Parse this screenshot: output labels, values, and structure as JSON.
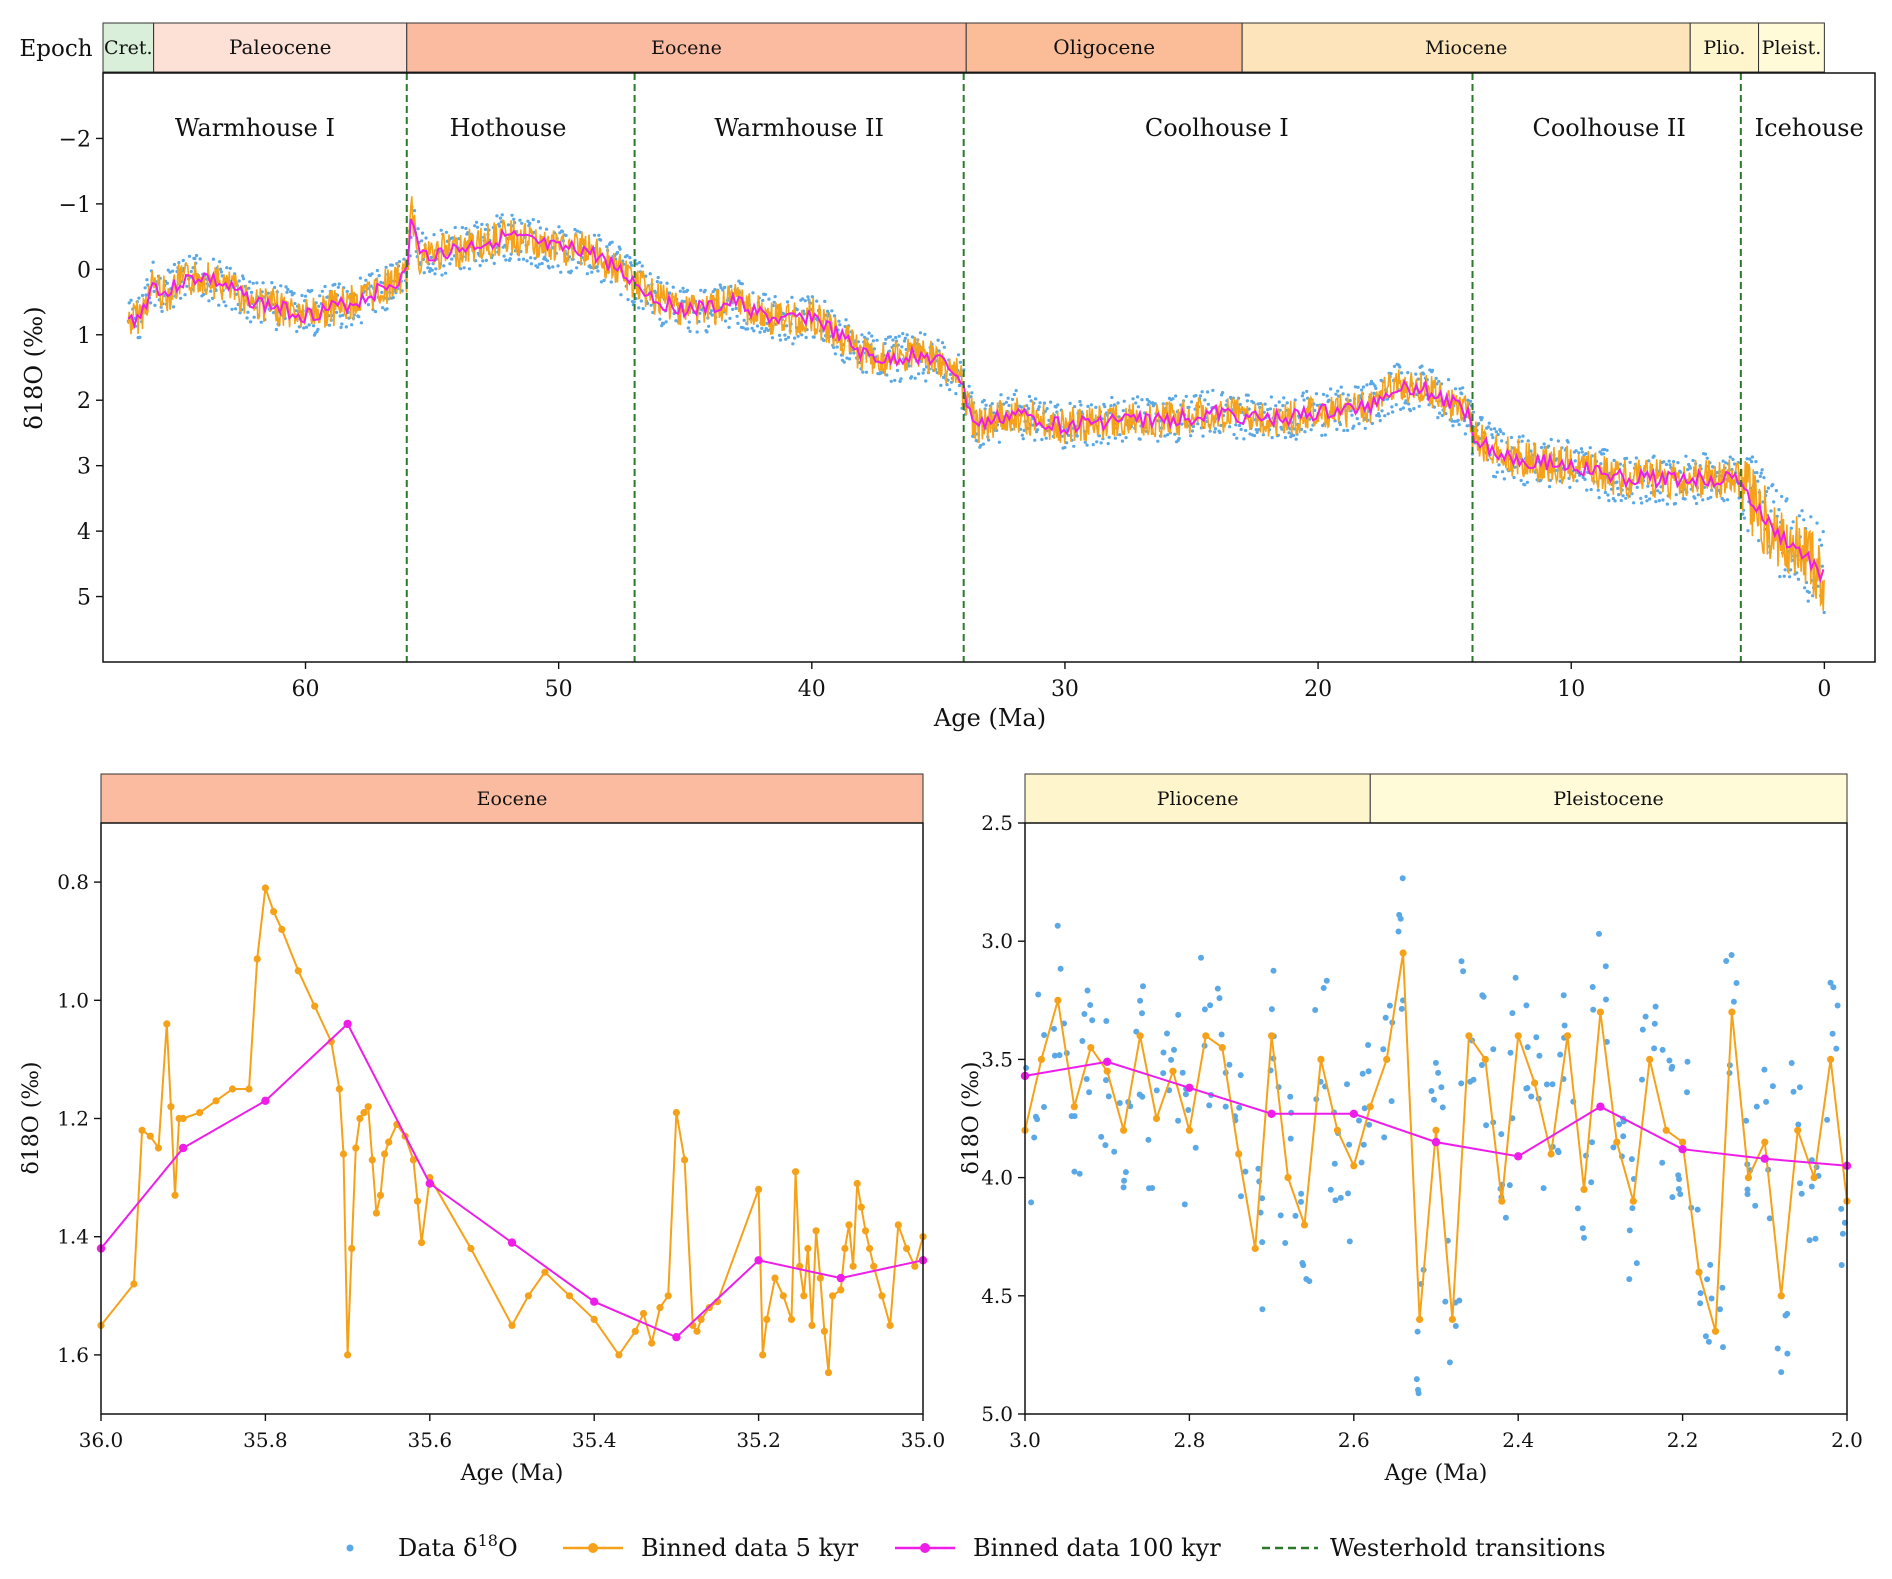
{
  "colors": {
    "data": "#5aa9e6",
    "bin5": "#f5a21a",
    "bin100": "#ee1ee8",
    "transition": "#2b7a2b"
  },
  "legend": {
    "data": "Data δ18O",
    "data_main": "Data δ",
    "data_sup": "18",
    "data_tail": "O",
    "bin5": "Binned data 5 kyr",
    "bin100": "Binned data 100 kyr",
    "transitions": "Westerhold transitions"
  },
  "chart_data": [
    {
      "id": "top",
      "type": "scatter",
      "epoch_label": "Epoch",
      "xlabel": "Age (Ma)",
      "ylabel": "δ18O (‰)",
      "xlim": [
        68,
        -2
      ],
      "ylim": [
        6,
        -3
      ],
      "y_inverted": true,
      "xticks": [
        60,
        50,
        40,
        30,
        20,
        10,
        0
      ],
      "yticks": [
        -2,
        -1,
        0,
        1,
        2,
        3,
        4,
        5
      ],
      "ytick_labels": [
        "−2",
        "−1",
        "0",
        "1",
        "2",
        "3",
        "4",
        "5"
      ],
      "epochs": [
        {
          "name": "Cret.",
          "from": 68,
          "to": 66,
          "color": "#d9efd9"
        },
        {
          "name": "Paleocene",
          "from": 66,
          "to": 56,
          "color": "#fde0d6"
        },
        {
          "name": "Eocene",
          "from": 56,
          "to": 33.9,
          "color": "#fbbba0"
        },
        {
          "name": "Oligocene",
          "from": 33.9,
          "to": 23,
          "color": "#fbbc98"
        },
        {
          "name": "Miocene",
          "from": 23,
          "to": 5.3,
          "color": "#fde4ba"
        },
        {
          "name": "Plio.",
          "from": 5.3,
          "to": 2.6,
          "color": "#fef5cc"
        },
        {
          "name": "Pleist.",
          "from": 2.6,
          "to": 0,
          "color": "#fffad8"
        }
      ],
      "climate_states": [
        {
          "name": "Warmhouse I",
          "at": 62
        },
        {
          "name": "Hothouse",
          "at": 52
        },
        {
          "name": "Warmhouse II",
          "at": 40.5
        },
        {
          "name": "Coolhouse I",
          "at": 24
        },
        {
          "name": "Coolhouse II",
          "at": 8.5
        },
        {
          "name": "Icehouse",
          "at": 0.6
        }
      ],
      "transitions": [
        56,
        47,
        34,
        13.9,
        3.3
      ],
      "trend_100kyr": {
        "x": [
          67,
          66.5,
          66,
          65.5,
          65,
          64,
          63,
          62,
          61,
          60,
          59,
          58,
          57,
          56.5,
          56,
          55.8,
          55.5,
          54,
          53,
          52,
          51,
          50,
          49,
          48,
          47,
          46,
          45,
          44,
          43,
          42,
          41,
          40,
          39,
          38,
          37,
          36,
          35,
          34.2,
          33.9,
          33.5,
          32,
          30,
          28,
          26,
          24,
          22,
          20,
          18,
          17,
          16,
          15,
          14,
          13.9,
          13,
          12,
          10,
          8,
          6,
          4,
          3.3,
          3,
          2,
          1,
          0
        ],
        "y": [
          0.8,
          0.7,
          0.2,
          0.4,
          0.2,
          0.1,
          0.3,
          0.5,
          0.6,
          0.7,
          0.6,
          0.5,
          0.3,
          0.2,
          0.1,
          -0.9,
          -0.2,
          -0.3,
          -0.4,
          -0.5,
          -0.4,
          -0.3,
          -0.3,
          -0.1,
          0.2,
          0.5,
          0.6,
          0.6,
          0.5,
          0.7,
          0.8,
          0.7,
          1.0,
          1.3,
          1.4,
          1.3,
          1.4,
          1.6,
          2.0,
          2.4,
          2.2,
          2.4,
          2.3,
          2.3,
          2.2,
          2.3,
          2.2,
          2.1,
          1.8,
          1.8,
          2.0,
          2.2,
          2.5,
          2.8,
          2.9,
          3.0,
          3.2,
          3.2,
          3.2,
          3.2,
          3.5,
          4.0,
          4.3,
          4.7
        ]
      }
    },
    {
      "id": "bottom-left",
      "type": "line",
      "epoch_label": "Eocene",
      "epoch_color": "#fbbba0",
      "xlabel": "Age (Ma)",
      "ylabel": "δ18O (‰)",
      "xlim": [
        36.0,
        35.0
      ],
      "ylim": [
        1.7,
        0.7
      ],
      "y_inverted": true,
      "xticks": [
        36.0,
        35.8,
        35.6,
        35.4,
        35.2,
        35.0
      ],
      "xtick_labels": [
        "36.0",
        "35.8",
        "35.6",
        "35.4",
        "35.2",
        "35.0"
      ],
      "yticks": [
        0.8,
        1.0,
        1.2,
        1.4,
        1.6
      ],
      "ytick_labels": [
        "0.8",
        "1.0",
        "1.2",
        "1.4",
        "1.6"
      ],
      "series": [
        {
          "name": "Binned data 5 kyr",
          "x": [
            36.0,
            35.96,
            35.95,
            35.94,
            35.93,
            35.92,
            35.915,
            35.91,
            35.905,
            35.9,
            35.88,
            35.86,
            35.84,
            35.82,
            35.81,
            35.8,
            35.79,
            35.78,
            35.76,
            35.74,
            35.72,
            35.71,
            35.705,
            35.7,
            35.695,
            35.69,
            35.685,
            35.68,
            35.675,
            35.67,
            35.665,
            35.66,
            35.655,
            35.65,
            35.64,
            35.63,
            35.62,
            35.615,
            35.61,
            35.6,
            35.55,
            35.5,
            35.48,
            35.46,
            35.43,
            35.4,
            35.37,
            35.35,
            35.34,
            35.33,
            35.32,
            35.31,
            35.3,
            35.29,
            35.28,
            35.275,
            35.27,
            35.26,
            35.25,
            35.2,
            35.195,
            35.19,
            35.18,
            35.17,
            35.16,
            35.155,
            35.15,
            35.145,
            35.14,
            35.135,
            35.13,
            35.125,
            35.12,
            35.115,
            35.11,
            35.1,
            35.095,
            35.09,
            35.085,
            35.08,
            35.075,
            35.07,
            35.065,
            35.06,
            35.05,
            35.04,
            35.03,
            35.02,
            35.01,
            35.0
          ],
          "y": [
            1.55,
            1.48,
            1.22,
            1.23,
            1.25,
            1.04,
            1.18,
            1.33,
            1.2,
            1.2,
            1.19,
            1.17,
            1.15,
            1.15,
            0.93,
            0.81,
            0.85,
            0.88,
            0.95,
            1.01,
            1.07,
            1.15,
            1.26,
            1.6,
            1.42,
            1.25,
            1.2,
            1.19,
            1.18,
            1.27,
            1.36,
            1.33,
            1.26,
            1.24,
            1.21,
            1.23,
            1.27,
            1.34,
            1.41,
            1.3,
            1.42,
            1.55,
            1.5,
            1.46,
            1.5,
            1.54,
            1.6,
            1.56,
            1.53,
            1.58,
            1.52,
            1.5,
            1.19,
            1.27,
            1.55,
            1.56,
            1.54,
            1.52,
            1.51,
            1.32,
            1.6,
            1.54,
            1.47,
            1.5,
            1.54,
            1.29,
            1.45,
            1.5,
            1.42,
            1.55,
            1.39,
            1.47,
            1.56,
            1.63,
            1.5,
            1.49,
            1.42,
            1.38,
            1.45,
            1.31,
            1.35,
            1.39,
            1.42,
            1.45,
            1.5,
            1.55,
            1.38,
            1.42,
            1.45,
            1.4
          ]
        },
        {
          "name": "Binned data 100 kyr",
          "x": [
            36.0,
            35.9,
            35.8,
            35.7,
            35.6,
            35.5,
            35.4,
            35.3,
            35.2,
            35.1,
            35.0
          ],
          "y": [
            1.42,
            1.25,
            1.17,
            1.04,
            1.31,
            1.41,
            1.51,
            1.57,
            1.44,
            1.47,
            1.44
          ]
        }
      ]
    },
    {
      "id": "bottom-right",
      "type": "line",
      "epoch_labels": [
        {
          "name": "Pliocene",
          "from": 3.0,
          "to": 2.58,
          "color": "#fef5cc"
        },
        {
          "name": "Pleistocene",
          "from": 2.58,
          "to": 2.0,
          "color": "#fffad8"
        }
      ],
      "xlabel": "Age (Ma)",
      "ylabel": "δ18O (‰)",
      "xlim": [
        3.0,
        2.0
      ],
      "ylim": [
        5.0,
        2.5
      ],
      "y_inverted": true,
      "xticks": [
        3.0,
        2.8,
        2.6,
        2.4,
        2.2,
        2.0
      ],
      "xtick_labels": [
        "3.0",
        "2.8",
        "2.6",
        "2.4",
        "2.2",
        "2.0"
      ],
      "yticks": [
        2.5,
        3.0,
        3.5,
        4.0,
        4.5,
        5.0
      ],
      "ytick_labels": [
        "2.5",
        "3.0",
        "3.5",
        "4.0",
        "4.5",
        "5.0"
      ],
      "series": [
        {
          "name": "Binned data 5 kyr",
          "x": [
            3.0,
            2.98,
            2.96,
            2.94,
            2.92,
            2.9,
            2.88,
            2.86,
            2.84,
            2.82,
            2.8,
            2.78,
            2.76,
            2.74,
            2.72,
            2.7,
            2.68,
            2.66,
            2.64,
            2.62,
            2.6,
            2.58,
            2.56,
            2.54,
            2.52,
            2.5,
            2.48,
            2.46,
            2.44,
            2.42,
            2.4,
            2.38,
            2.36,
            2.34,
            2.32,
            2.3,
            2.28,
            2.26,
            2.24,
            2.22,
            2.2,
            2.18,
            2.16,
            2.14,
            2.12,
            2.1,
            2.08,
            2.06,
            2.04,
            2.02,
            2.0
          ],
          "y": [
            3.8,
            3.5,
            3.25,
            3.7,
            3.45,
            3.55,
            3.8,
            3.4,
            3.75,
            3.55,
            3.8,
            3.4,
            3.45,
            3.9,
            4.3,
            3.4,
            4.0,
            4.2,
            3.5,
            3.8,
            3.95,
            3.7,
            3.5,
            3.05,
            4.6,
            3.8,
            4.6,
            3.4,
            3.5,
            4.1,
            3.4,
            3.6,
            3.9,
            3.4,
            4.05,
            3.3,
            3.85,
            4.1,
            3.5,
            3.8,
            3.85,
            4.4,
            4.65,
            3.3,
            4.0,
            3.85,
            4.5,
            3.8,
            4.0,
            3.5,
            4.1
          ]
        },
        {
          "name": "Binned data 100 kyr",
          "x": [
            3.0,
            2.9,
            2.8,
            2.7,
            2.6,
            2.5,
            2.4,
            2.3,
            2.2,
            2.1,
            2.0
          ],
          "y": [
            3.57,
            3.51,
            3.62,
            3.73,
            3.73,
            3.85,
            3.91,
            3.7,
            3.88,
            3.92,
            3.95
          ]
        }
      ]
    }
  ]
}
